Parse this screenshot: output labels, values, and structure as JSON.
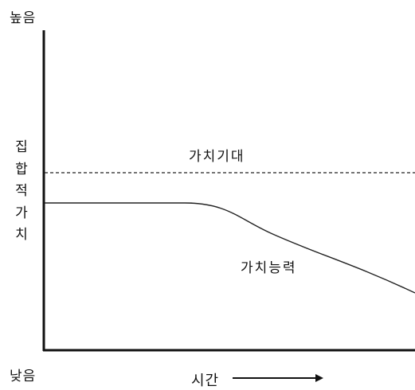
{
  "diagram": {
    "y_axis": {
      "label": "집합적가치",
      "high_label": "높음",
      "low_label": "낮음"
    },
    "x_axis": {
      "label": "시간"
    },
    "curves": [
      {
        "label": "가치기대",
        "style": "dashed"
      },
      {
        "label": "가치능력",
        "style": "solid"
      }
    ],
    "colors": {
      "ink": "#111111",
      "curve": "#222222"
    }
  }
}
